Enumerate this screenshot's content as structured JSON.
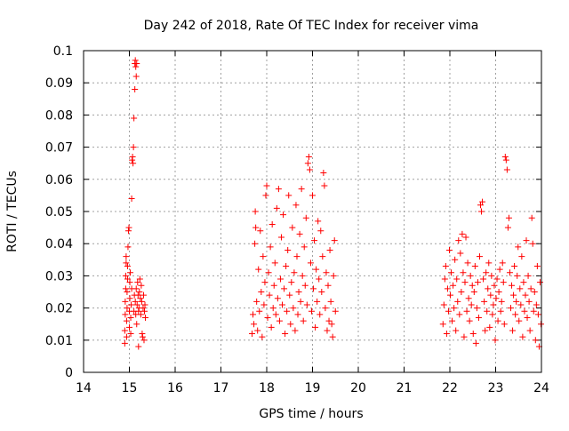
{
  "chart_data": {
    "type": "scatter",
    "title": "Day 242 of 2018, Rate Of TEC Index for receiver vima",
    "xlabel": "GPS time / hours",
    "ylabel": "ROTI / TECUs",
    "xlim": [
      14,
      24
    ],
    "ylim": [
      0,
      0.1
    ],
    "x_ticks": [
      "14",
      "15",
      "16",
      "17",
      "18",
      "19",
      "20",
      "21",
      "22",
      "23",
      "24"
    ],
    "y_ticks": [
      "0",
      "0.01",
      "0.02",
      "0.03",
      "0.04",
      "0.05",
      "0.06",
      "0.07",
      "0.08",
      "0.09",
      "0.1"
    ],
    "grid": true,
    "legend": "none",
    "marker": "plus",
    "color": "#ff0000",
    "series": [
      {
        "points": [
          [
            14.9,
            0.009
          ],
          [
            14.9,
            0.013
          ],
          [
            14.91,
            0.018
          ],
          [
            14.91,
            0.022
          ],
          [
            14.92,
            0.026
          ],
          [
            14.92,
            0.03
          ],
          [
            14.93,
            0.034
          ],
          [
            14.93,
            0.036
          ],
          [
            14.94,
            0.011
          ],
          [
            14.94,
            0.016
          ],
          [
            14.95,
            0.02
          ],
          [
            14.95,
            0.025
          ],
          [
            14.96,
            0.029
          ],
          [
            14.96,
            0.033
          ],
          [
            14.97,
            0.039
          ],
          [
            14.98,
            0.044
          ],
          [
            14.99,
            0.045
          ],
          [
            15.0,
            0.014
          ],
          [
            15.0,
            0.019
          ],
          [
            15.01,
            0.023
          ],
          [
            15.01,
            0.028
          ],
          [
            15.02,
            0.031
          ],
          [
            15.03,
            0.012
          ],
          [
            15.03,
            0.017
          ],
          [
            15.04,
            0.021
          ],
          [
            15.05,
            0.026
          ],
          [
            15.05,
            0.054
          ],
          [
            15.06,
            0.066
          ],
          [
            15.07,
            0.067
          ],
          [
            15.08,
            0.065
          ],
          [
            15.09,
            0.07
          ],
          [
            15.1,
            0.079
          ],
          [
            15.1,
            0.019
          ],
          [
            15.11,
            0.024
          ],
          [
            15.12,
            0.088
          ],
          [
            15.12,
            0.096
          ],
          [
            15.13,
            0.097
          ],
          [
            15.14,
            0.095
          ],
          [
            15.15,
            0.092
          ],
          [
            15.16,
            0.096
          ],
          [
            15.13,
            0.022
          ],
          [
            15.14,
            0.018
          ],
          [
            15.15,
            0.026
          ],
          [
            15.16,
            0.015
          ],
          [
            15.17,
            0.021
          ],
          [
            15.18,
            0.028
          ],
          [
            15.19,
            0.024
          ],
          [
            15.2,
            0.019
          ],
          [
            15.2,
            0.008
          ],
          [
            15.21,
            0.02
          ],
          [
            15.22,
            0.025
          ],
          [
            15.23,
            0.029
          ],
          [
            15.24,
            0.023
          ],
          [
            15.25,
            0.018
          ],
          [
            15.26,
            0.027
          ],
          [
            15.27,
            0.022
          ],
          [
            15.28,
            0.012
          ],
          [
            15.29,
            0.011
          ],
          [
            15.3,
            0.02
          ],
          [
            15.31,
            0.024
          ],
          [
            15.32,
            0.01
          ],
          [
            15.33,
            0.019
          ],
          [
            15.34,
            0.021
          ],
          [
            15.35,
            0.017
          ],
          [
            17.68,
            0.012
          ],
          [
            17.7,
            0.018
          ],
          [
            17.72,
            0.015
          ],
          [
            17.74,
            0.04
          ],
          [
            17.75,
            0.05
          ],
          [
            17.76,
            0.045
          ],
          [
            17.78,
            0.022
          ],
          [
            17.8,
            0.013
          ],
          [
            17.82,
            0.032
          ],
          [
            17.84,
            0.019
          ],
          [
            17.86,
            0.044
          ],
          [
            17.88,
            0.025
          ],
          [
            17.9,
            0.011
          ],
          [
            17.92,
            0.036
          ],
          [
            17.94,
            0.021
          ],
          [
            17.96,
            0.028
          ],
          [
            17.98,
            0.055
          ],
          [
            18.0,
            0.058
          ],
          [
            18.02,
            0.017
          ],
          [
            18.04,
            0.031
          ],
          [
            18.06,
            0.024
          ],
          [
            18.08,
            0.039
          ],
          [
            18.1,
            0.014
          ],
          [
            18.12,
            0.046
          ],
          [
            18.14,
            0.02
          ],
          [
            18.16,
            0.027
          ],
          [
            18.18,
            0.034
          ],
          [
            18.2,
            0.018
          ],
          [
            18.22,
            0.051
          ],
          [
            18.24,
            0.023
          ],
          [
            18.26,
            0.057
          ],
          [
            18.28,
            0.016
          ],
          [
            18.3,
            0.029
          ],
          [
            18.32,
            0.042
          ],
          [
            18.34,
            0.021
          ],
          [
            18.36,
            0.049
          ],
          [
            18.38,
            0.026
          ],
          [
            18.4,
            0.012
          ],
          [
            18.42,
            0.033
          ],
          [
            18.44,
            0.019
          ],
          [
            18.46,
            0.038
          ],
          [
            18.48,
            0.055
          ],
          [
            18.5,
            0.024
          ],
          [
            18.52,
            0.015
          ],
          [
            18.54,
            0.028
          ],
          [
            18.56,
            0.045
          ],
          [
            18.58,
            0.02
          ],
          [
            18.6,
            0.031
          ],
          [
            18.62,
            0.013
          ],
          [
            18.64,
            0.052
          ],
          [
            18.66,
            0.036
          ],
          [
            18.68,
            0.018
          ],
          [
            18.7,
            0.025
          ],
          [
            18.72,
            0.043
          ],
          [
            18.74,
            0.022
          ],
          [
            18.76,
            0.057
          ],
          [
            18.78,
            0.03
          ],
          [
            18.8,
            0.016
          ],
          [
            18.82,
            0.039
          ],
          [
            18.84,
            0.027
          ],
          [
            18.86,
            0.048
          ],
          [
            18.88,
            0.021
          ],
          [
            18.9,
            0.065
          ],
          [
            18.92,
            0.067
          ],
          [
            18.94,
            0.063
          ],
          [
            18.96,
            0.034
          ],
          [
            18.98,
            0.019
          ],
          [
            19.0,
            0.055
          ],
          [
            19.02,
            0.026
          ],
          [
            19.04,
            0.041
          ],
          [
            19.06,
            0.014
          ],
          [
            19.08,
            0.032
          ],
          [
            19.1,
            0.022
          ],
          [
            19.12,
            0.047
          ],
          [
            19.14,
            0.029
          ],
          [
            19.16,
            0.018
          ],
          [
            19.18,
            0.044
          ],
          [
            19.2,
            0.025
          ],
          [
            19.22,
            0.036
          ],
          [
            19.24,
            0.062
          ],
          [
            19.26,
            0.058
          ],
          [
            19.28,
            0.02
          ],
          [
            19.3,
            0.031
          ],
          [
            19.32,
            0.013
          ],
          [
            19.34,
            0.027
          ],
          [
            19.36,
            0.016
          ],
          [
            19.38,
            0.038
          ],
          [
            19.4,
            0.022
          ],
          [
            19.42,
            0.015
          ],
          [
            19.44,
            0.011
          ],
          [
            19.46,
            0.03
          ],
          [
            19.48,
            0.041
          ],
          [
            19.5,
            0.019
          ],
          [
            21.85,
            0.015
          ],
          [
            21.87,
            0.021
          ],
          [
            21.89,
            0.029
          ],
          [
            21.91,
            0.033
          ],
          [
            21.93,
            0.012
          ],
          [
            21.95,
            0.026
          ],
          [
            21.97,
            0.019
          ],
          [
            21.99,
            0.038
          ],
          [
            22.01,
            0.024
          ],
          [
            22.03,
            0.031
          ],
          [
            22.05,
            0.016
          ],
          [
            22.07,
            0.027
          ],
          [
            22.09,
            0.02
          ],
          [
            22.11,
            0.035
          ],
          [
            22.13,
            0.013
          ],
          [
            22.15,
            0.029
          ],
          [
            22.17,
            0.022
          ],
          [
            22.19,
            0.041
          ],
          [
            22.21,
            0.018
          ],
          [
            22.23,
            0.037
          ],
          [
            22.25,
            0.025
          ],
          [
            22.27,
            0.043
          ],
          [
            22.29,
            0.031
          ],
          [
            22.31,
            0.011
          ],
          [
            22.33,
            0.028
          ],
          [
            22.35,
            0.042
          ],
          [
            22.37,
            0.019
          ],
          [
            22.39,
            0.034
          ],
          [
            22.41,
            0.023
          ],
          [
            22.43,
            0.016
          ],
          [
            22.45,
            0.03
          ],
          [
            22.47,
            0.021
          ],
          [
            22.49,
            0.027
          ],
          [
            22.51,
            0.012
          ],
          [
            22.53,
            0.025
          ],
          [
            22.55,
            0.033
          ],
          [
            22.57,
            0.009
          ],
          [
            22.59,
            0.02
          ],
          [
            22.61,
            0.028
          ],
          [
            22.63,
            0.017
          ],
          [
            22.65,
            0.036
          ],
          [
            22.67,
            0.052
          ],
          [
            22.69,
            0.05
          ],
          [
            22.71,
            0.053
          ],
          [
            22.73,
            0.029
          ],
          [
            22.75,
            0.022
          ],
          [
            22.77,
            0.013
          ],
          [
            22.79,
            0.031
          ],
          [
            22.81,
            0.019
          ],
          [
            22.83,
            0.026
          ],
          [
            22.85,
            0.034
          ],
          [
            22.87,
            0.014
          ],
          [
            22.89,
            0.024
          ],
          [
            22.91,
            0.03
          ],
          [
            22.93,
            0.018
          ],
          [
            22.95,
            0.021
          ],
          [
            22.97,
            0.027
          ],
          [
            22.99,
            0.01
          ],
          [
            23.01,
            0.023
          ],
          [
            23.03,
            0.029
          ],
          [
            23.05,
            0.016
          ],
          [
            23.07,
            0.025
          ],
          [
            23.09,
            0.032
          ],
          [
            23.11,
            0.019
          ],
          [
            23.13,
            0.022
          ],
          [
            23.15,
            0.034
          ],
          [
            23.17,
            0.028
          ],
          [
            23.19,
            0.015
          ],
          [
            23.21,
            0.067
          ],
          [
            23.23,
            0.066
          ],
          [
            23.25,
            0.063
          ],
          [
            23.27,
            0.045
          ],
          [
            23.29,
            0.048
          ],
          [
            23.31,
            0.031
          ],
          [
            23.33,
            0.02
          ],
          [
            23.35,
            0.027
          ],
          [
            23.37,
            0.013
          ],
          [
            23.39,
            0.024
          ],
          [
            23.41,
            0.033
          ],
          [
            23.43,
            0.018
          ],
          [
            23.45,
            0.022
          ],
          [
            23.47,
            0.03
          ],
          [
            23.49,
            0.039
          ],
          [
            23.51,
            0.016
          ],
          [
            23.53,
            0.026
          ],
          [
            23.55,
            0.021
          ],
          [
            23.57,
            0.036
          ],
          [
            23.59,
            0.011
          ],
          [
            23.61,
            0.028
          ],
          [
            23.63,
            0.019
          ],
          [
            23.65,
            0.024
          ],
          [
            23.67,
            0.041
          ],
          [
            23.69,
            0.017
          ],
          [
            23.71,
            0.03
          ],
          [
            23.73,
            0.022
          ],
          [
            23.75,
            0.013
          ],
          [
            23.77,
            0.026
          ],
          [
            23.79,
            0.048
          ],
          [
            23.81,
            0.04
          ],
          [
            23.83,
            0.019
          ],
          [
            23.85,
            0.025
          ],
          [
            23.87,
            0.01
          ],
          [
            23.89,
            0.021
          ],
          [
            23.91,
            0.033
          ],
          [
            23.93,
            0.018
          ],
          [
            23.95,
            0.008
          ],
          [
            23.97,
            0.028
          ],
          [
            23.99,
            0.015
          ]
        ]
      }
    ]
  }
}
